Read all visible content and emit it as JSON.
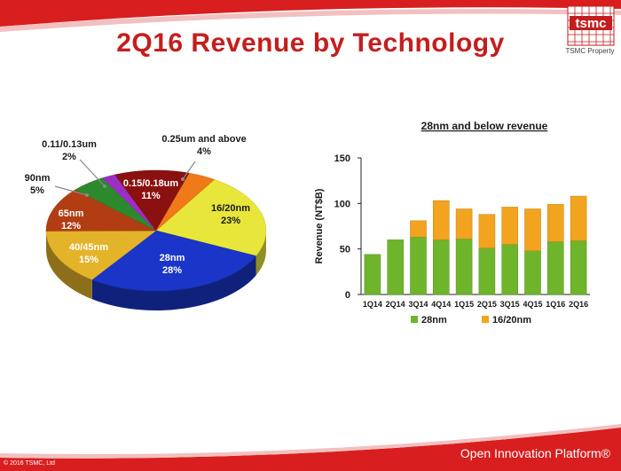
{
  "slide": {
    "title": "2Q16 Revenue by Technology",
    "logo_text": "tsmc",
    "logo_caption": "TSMC Property",
    "copyright": "© 2016 TSMC, Ltd",
    "brand_footer": "Open Innovation Platform®"
  },
  "colors": {
    "accent_red": "#c41e1e",
    "bar_28nm": "#6fb52c",
    "bar_16_20nm": "#f2a41e"
  },
  "chart_data": [
    {
      "type": "pie",
      "slices": [
        {
          "name": "16/20nm",
          "value": 23,
          "label": "23%",
          "color": "#e8e63a"
        },
        {
          "name": "28nm",
          "value": 28,
          "label": "28%",
          "color": "#1a35c8"
        },
        {
          "name": "40/45nm",
          "value": 15,
          "label": "15%",
          "color": "#e3b32a"
        },
        {
          "name": "65nm",
          "value": 12,
          "label": "12%",
          "color": "#b33d12"
        },
        {
          "name": "90nm",
          "value": 5,
          "label": "5%",
          "color": "#2c8a2c"
        },
        {
          "name": "0.11/0.13um",
          "value": 2,
          "label": "2%",
          "color": "#9b2fc4"
        },
        {
          "name": "0.15/0.18um",
          "value": 11,
          "label": "11%",
          "color": "#8b1010"
        },
        {
          "name": "0.25um and above",
          "value": 4,
          "label": "4%",
          "color": "#f07a18"
        }
      ]
    },
    {
      "type": "bar",
      "stacked": true,
      "title": "28nm and below revenue",
      "ylabel": "Revenue (NT$B)",
      "ylim": [
        0,
        150
      ],
      "yticks": [
        0,
        50,
        100,
        150
      ],
      "legend": "bottom",
      "categories": [
        "1Q14",
        "2Q14",
        "3Q14",
        "4Q14",
        "1Q15",
        "2Q15",
        "3Q15",
        "4Q15",
        "1Q16",
        "2Q16"
      ],
      "series": [
        {
          "name": "28nm",
          "color": "#6fb52c",
          "values": [
            44,
            60,
            63,
            60,
            61,
            51,
            55,
            48,
            58,
            59
          ]
        },
        {
          "name": "16/20nm",
          "color": "#f2a41e",
          "values": [
            0,
            0,
            18,
            43,
            33,
            37,
            41,
            46,
            41,
            49
          ]
        }
      ]
    }
  ]
}
